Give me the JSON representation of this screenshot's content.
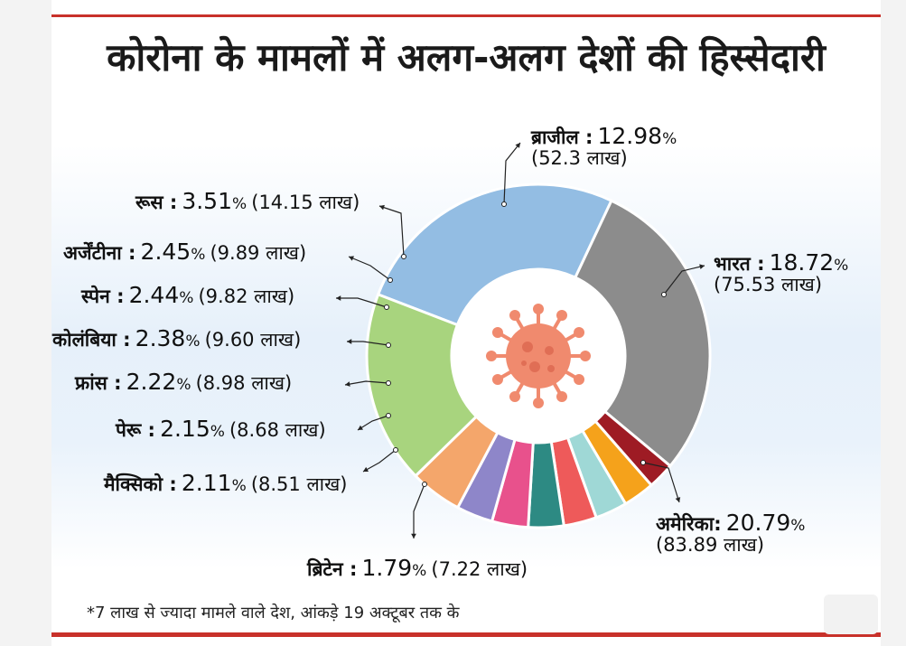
{
  "title": "कोरोना के मामलों में अलग-अलग देशों की हिस्सेदारी",
  "note": "*7 लाख से ज्यादा मामले वाले देश, आंकड़े 19 अक्टूबर तक के",
  "chart_data": {
    "type": "pie",
    "donut": true,
    "unit": "%",
    "slices": [
      {
        "name": "भारत",
        "label": "भारत :",
        "value": 18.72,
        "pct": "18.72",
        "cases": "(75.53 लाख)",
        "color": "#93bde3"
      },
      {
        "name": "अमेरिका",
        "label": "अमेरिका:",
        "value": 20.79,
        "pct": "20.79",
        "cases": "(83.89 लाख)",
        "color": "#8c8c8c"
      },
      {
        "name": "ब्रिटेन",
        "label": "ब्रिटेन :",
        "value": 1.79,
        "pct": "1.79",
        "cases": "(7.22 लाख)",
        "color": "#9e1b24"
      },
      {
        "name": "मैक्सिको",
        "label": "मैक्सिको :",
        "value": 2.11,
        "pct": "2.11",
        "cases": "(8.51 लाख)",
        "color": "#f5a21b"
      },
      {
        "name": "पेरू",
        "label": "पेरू :",
        "value": 2.15,
        "pct": "2.15",
        "cases": "(8.68 लाख)",
        "color": "#9fd8d6"
      },
      {
        "name": "फ्रांस",
        "label": "फ्रांस :",
        "value": 2.22,
        "pct": "2.22",
        "cases": "(8.98 लाख)",
        "color": "#ee5a5a"
      },
      {
        "name": "कोलंबिया",
        "label": "कोलंबिया :",
        "value": 2.38,
        "pct": "2.38",
        "cases": "(9.60 लाख)",
        "color": "#2d8a83"
      },
      {
        "name": "स्पेन",
        "label": "स्पेन :",
        "value": 2.44,
        "pct": "2.44",
        "cases": "(9.82 लाख)",
        "color": "#e8518c"
      },
      {
        "name": "अर्जेंटीना",
        "label": "अर्जेंटीना :",
        "value": 2.45,
        "pct": "2.45",
        "cases": "(9.89 लाख)",
        "color": "#8e86c9"
      },
      {
        "name": "रूस",
        "label": "रूस :",
        "value": 3.51,
        "pct": "3.51",
        "cases": "(14.15 लाख)",
        "color": "#f4a66b"
      },
      {
        "name": "ब्राजील",
        "label": "ब्राजील :",
        "value": 12.98,
        "pct": "12.98",
        "cases": "(52.3 लाख)",
        "color": "#a8d47e"
      }
    ],
    "center_icon": "virus-icon",
    "center_icon_color": "#f08a6e"
  }
}
